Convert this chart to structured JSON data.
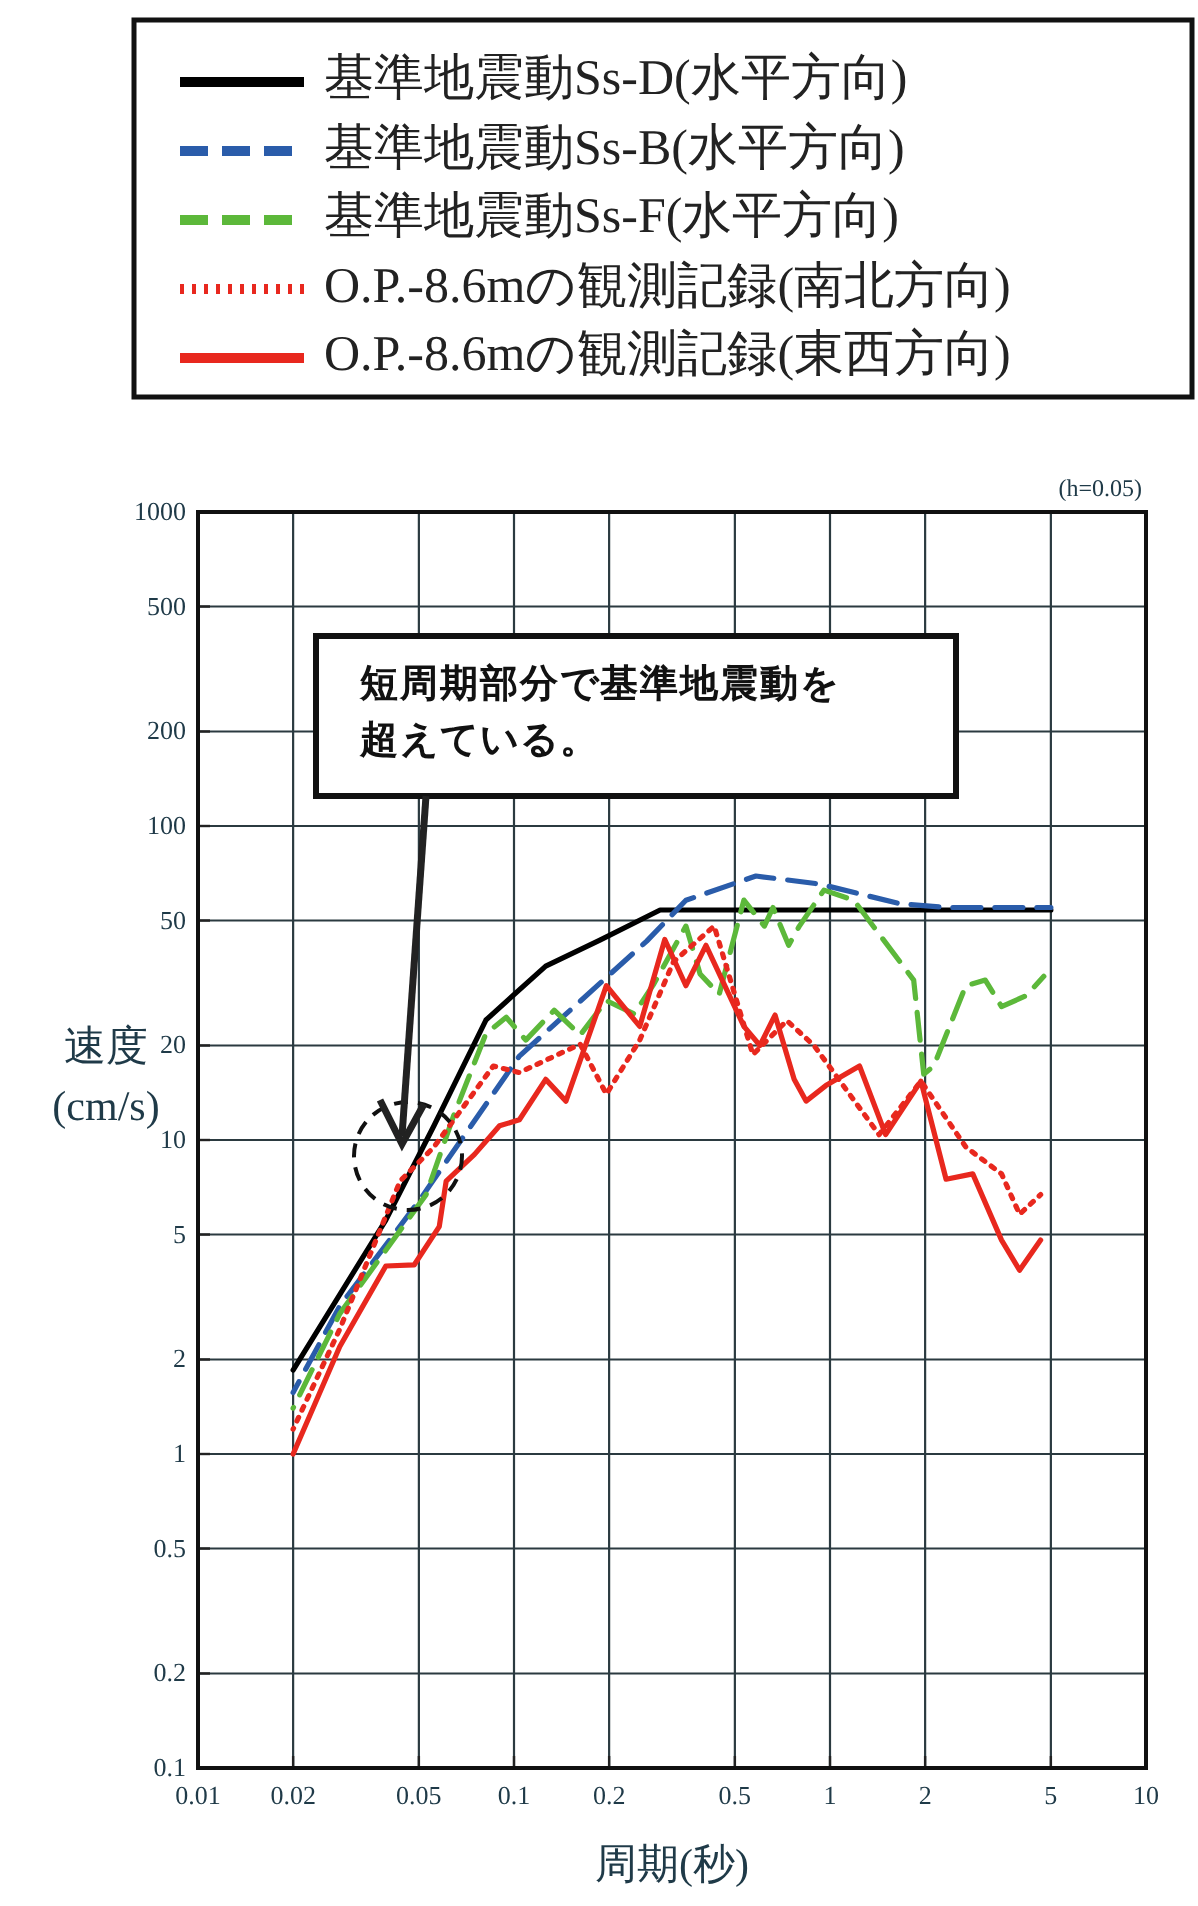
{
  "chart_data": {
    "type": "line",
    "xlabel": "周期(秒)",
    "ylabel": "速度(cm/s)",
    "log": "xy",
    "grid": true,
    "legend": "top",
    "xlim": [
      0.01,
      10
    ],
    "ylim": [
      0.1,
      1000
    ],
    "xticks": [
      0.01,
      0.02,
      0.05,
      0.1,
      0.2,
      0.5,
      1,
      2,
      5,
      10
    ],
    "yticks": [
      0.1,
      0.2,
      0.5,
      1,
      2,
      5,
      10,
      20,
      50,
      100,
      200,
      500,
      1000
    ],
    "annotations": [
      "(h=0.05)",
      "短周期部分で基準地震動を超えている。"
    ],
    "series": [
      {
        "name": "基準地震動Ss-D(水平方向)",
        "color": "#000000",
        "line_style": "solid",
        "x": [
          0.02,
          0.0393,
          0.0558,
          0.0815,
          0.126,
          0.187,
          0.29,
          5
        ],
        "values": [
          1.85,
          5.56,
          11.1,
          24.1,
          35.8,
          43.3,
          54,
          54
        ]
      },
      {
        "name": "基準地震動Ss-B(水平方向)",
        "color": "#2a5caa",
        "line_style": "dashed",
        "x": [
          0.02,
          0.0281,
          0.0503,
          0.104,
          0.263,
          0.35,
          0.583,
          0.93,
          1.67,
          2.33,
          5
        ],
        "values": [
          1.57,
          2.96,
          6.44,
          18.5,
          43,
          58,
          69.3,
          65.3,
          56.5,
          55,
          55
        ]
      },
      {
        "name": "基準地震動Ss-F(水平方向)",
        "color": "#5cb83a",
        "line_style": "dashed",
        "x": [
          0.02,
          0.0281,
          0.0527,
          0.0645,
          0.0815,
          0.0945,
          0.109,
          0.134,
          0.162,
          0.196,
          0.24,
          0.277,
          0.35,
          0.388,
          0.446,
          0.534,
          0.62,
          0.66,
          0.74,
          0.8,
          0.957,
          1.19,
          1.43,
          1.84,
          1.98,
          2.13,
          2.69,
          3.1,
          3.49,
          4.17,
          4.75
        ],
        "values": [
          1.4,
          2.8,
          6.7,
          12,
          21.8,
          24.6,
          20.8,
          25.9,
          21.6,
          27.8,
          25.2,
          31.4,
          48,
          33.8,
          29.1,
          58.1,
          48,
          55,
          41.7,
          48,
          62.5,
          58,
          45.3,
          32.3,
          16.2,
          17.2,
          31,
          32.3,
          26.6,
          28.8,
          33.2
        ]
      },
      {
        "name": "O.P.-8.6mの観測記録(南北方向)",
        "color": "#e8281e",
        "line_style": "dotted",
        "x": [
          0.02,
          0.0281,
          0.0436,
          0.0558,
          0.086,
          0.104,
          0.162,
          0.196,
          0.25,
          0.32,
          0.43,
          0.57,
          0.73,
          0.89,
          1.43,
          1.94,
          2.69,
          3.49,
          3.98,
          4.64
        ],
        "values": [
          1.2,
          2.5,
          7.4,
          9.5,
          17.2,
          16.4,
          20.2,
          14,
          20.8,
          37,
          48,
          18.7,
          24,
          20,
          10.4,
          15.4,
          9.5,
          7.8,
          5.8,
          6.7
        ]
      },
      {
        "name": "O.P.-8.6mの観測記録(東西方向)",
        "color": "#e8281e",
        "line_style": "solid",
        "x": [
          0.02,
          0.0281,
          0.0393,
          0.0483,
          0.058,
          0.061,
          0.075,
          0.09,
          0.104,
          0.126,
          0.146,
          0.196,
          0.25,
          0.3,
          0.35,
          0.405,
          0.534,
          0.6,
          0.67,
          0.77,
          0.84,
          0.97,
          1.24,
          1.5,
          1.94,
          2.33,
          2.83,
          3.49,
          3.98,
          4.64
        ],
        "values": [
          1.0,
          2.2,
          3.97,
          4.0,
          5.3,
          7.4,
          9.0,
          11.1,
          11.6,
          15.6,
          13.3,
          31,
          23,
          43.5,
          31,
          41.7,
          23,
          20,
          25,
          15.6,
          13.3,
          14.9,
          17.2,
          10.4,
          15.4,
          7.5,
          7.8,
          4.8,
          3.85,
          4.8
        ]
      }
    ]
  }
}
